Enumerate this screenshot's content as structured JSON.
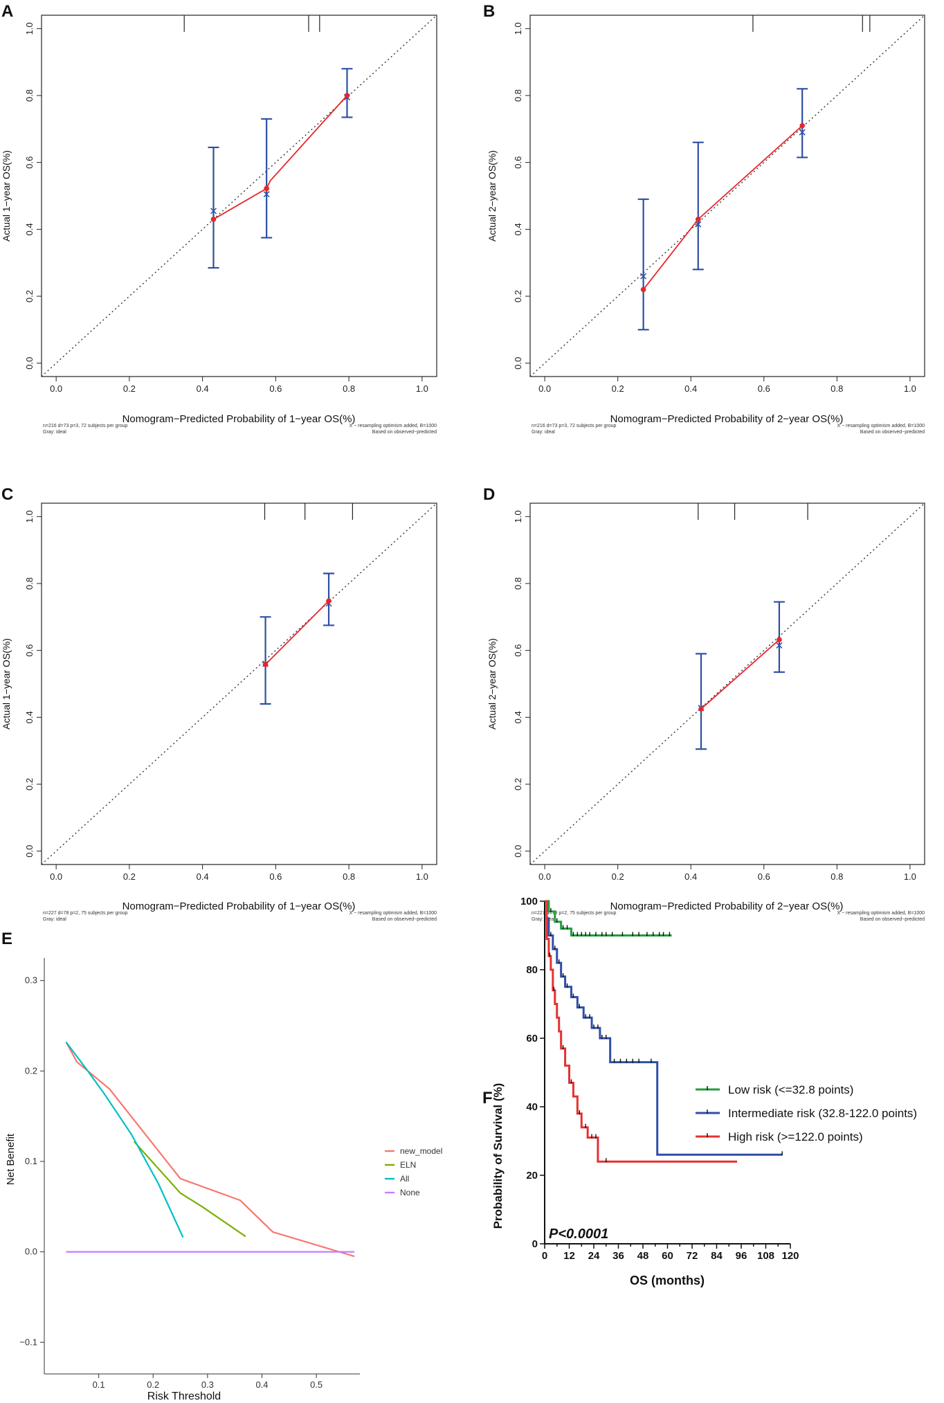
{
  "chart_data": [
    {
      "panel": "A",
      "type": "line",
      "xlabel": "Nomogram−Predicted Probability of 1−year OS(%)",
      "ylabel": "Actual 1−year OS(%)",
      "xlim": [
        -0.04,
        1.04
      ],
      "ylim": [
        -0.04,
        1.04
      ],
      "ticks": [
        "0.0",
        "0.2",
        "0.4",
        "0.6",
        "0.8",
        "1.0"
      ],
      "footer_left": [
        "n=216 d=73 p=3, 72 subjects per group",
        "Gray: ideal"
      ],
      "footer_right": [
        "X − resampling optimism added, B=1000",
        "Based on observed−predicted"
      ],
      "rug_x": [
        0.35,
        0.69,
        0.72
      ],
      "ideal_line": [
        [
          0,
          0
        ],
        [
          1,
          1
        ]
      ],
      "observed": {
        "x": [
          0.43,
          0.575,
          0.585,
          0.795
        ],
        "y": [
          0.43,
          0.522,
          0.545,
          0.8
        ]
      },
      "points": [
        {
          "x": 0.43,
          "observed": 0.43,
          "corrected": 0.455,
          "lower": 0.285,
          "upper": 0.645
        },
        {
          "x": 0.575,
          "observed": 0.522,
          "corrected": 0.505,
          "lower": 0.375,
          "upper": 0.73
        },
        {
          "x": 0.795,
          "observed": 0.8,
          "corrected": 0.795,
          "lower": 0.735,
          "upper": 0.88
        }
      ]
    },
    {
      "panel": "B",
      "type": "line",
      "xlabel": "Nomogram−Predicted Probability of 2−year OS(%)",
      "ylabel": "Actual 2−year OS(%)",
      "xlim": [
        -0.04,
        1.04
      ],
      "ylim": [
        -0.04,
        1.04
      ],
      "ticks": [
        "0.0",
        "0.2",
        "0.4",
        "0.6",
        "0.8",
        "1.0"
      ],
      "footer_left": [
        "n=216 d=73 p=3, 72 subjects per group",
        "Gray: ideal"
      ],
      "footer_right": [
        "X − resampling optimism added, B=1000",
        "Based on observed−predicted"
      ],
      "rug_x": [
        0.57,
        0.87,
        0.89
      ],
      "ideal_line": [
        [
          0,
          0
        ],
        [
          1,
          1
        ]
      ],
      "observed": {
        "x": [
          0.27,
          0.42,
          0.705
        ],
        "y": [
          0.22,
          0.43,
          0.71
        ]
      },
      "points": [
        {
          "x": 0.27,
          "observed": 0.22,
          "corrected": 0.26,
          "lower": 0.1,
          "upper": 0.49
        },
        {
          "x": 0.42,
          "observed": 0.43,
          "corrected": 0.415,
          "lower": 0.28,
          "upper": 0.66
        },
        {
          "x": 0.705,
          "observed": 0.71,
          "corrected": 0.69,
          "lower": 0.615,
          "upper": 0.82
        }
      ]
    },
    {
      "panel": "C",
      "type": "line",
      "xlabel": "Nomogram−Predicted Probability of 1−year OS(%)",
      "ylabel": "Actual 1−year OS(%)",
      "xlim": [
        -0.04,
        1.04
      ],
      "ylim": [
        -0.04,
        1.04
      ],
      "ticks": [
        "0.0",
        "0.2",
        "0.4",
        "0.6",
        "0.8",
        "1.0"
      ],
      "footer_left": [
        "n=227 d=78 p=2, 75 subjects per group",
        "Gray: ideal"
      ],
      "footer_right": [
        "X − resampling optimism added, B=1000",
        "Based on observed−predicted"
      ],
      "rug_x": [
        0.57,
        0.68,
        0.81
      ],
      "ideal_line": [
        [
          0,
          0
        ],
        [
          1,
          1
        ]
      ],
      "observed": {
        "x": [
          0.572,
          0.745
        ],
        "y": [
          0.558,
          0.748
        ]
      },
      "points": [
        {
          "x": 0.572,
          "observed": 0.558,
          "corrected": 0.56,
          "lower": 0.44,
          "upper": 0.7
        },
        {
          "x": 0.745,
          "observed": 0.748,
          "corrected": 0.74,
          "lower": 0.675,
          "upper": 0.83
        }
      ]
    },
    {
      "panel": "D",
      "type": "line",
      "xlabel": "Nomogram−Predicted Probability of 2−year OS(%)",
      "ylabel": "Actual 2−year OS(%)",
      "xlim": [
        -0.04,
        1.04
      ],
      "ylim": [
        -0.04,
        1.04
      ],
      "ticks": [
        "0.0",
        "0.2",
        "0.4",
        "0.6",
        "0.8",
        "1.0"
      ],
      "footer_left": [
        "n=227 d=78 p=2, 75 subjects per group",
        "Gray: ideal"
      ],
      "footer_right": [
        "X − resampling optimism added, B=1000",
        "Based on observed−predicted"
      ],
      "rug_x": [
        0.42,
        0.52,
        0.72
      ],
      "ideal_line": [
        [
          0,
          0
        ],
        [
          1,
          1
        ]
      ],
      "observed": {
        "x": [
          0.428,
          0.642
        ],
        "y": [
          0.425,
          0.632
        ]
      },
      "points": [
        {
          "x": 0.428,
          "observed": 0.425,
          "corrected": 0.428,
          "lower": 0.305,
          "upper": 0.59
        },
        {
          "x": 0.642,
          "observed": 0.632,
          "corrected": 0.615,
          "lower": 0.535,
          "upper": 0.745
        }
      ]
    },
    {
      "panel": "E",
      "type": "line",
      "xlabel": "Risk Threshold",
      "ylabel": "Net Benefit",
      "xlim": [
        0.0,
        0.58
      ],
      "ylim": [
        -0.135,
        0.325
      ],
      "xticks": [
        0.1,
        0.2,
        0.3,
        0.4,
        0.5
      ],
      "xtick_labels": [
        "0.1",
        "0.2",
        "0.3",
        "0.4",
        "0.5"
      ],
      "yticks": [
        -0.1,
        0.0,
        0.1,
        0.2,
        0.3
      ],
      "ytick_labels": [
        "−0.1",
        "0.0",
        "0.1",
        "0.2",
        "0.3"
      ],
      "series": [
        {
          "name": "new_model",
          "color": "#f8766d",
          "x": [
            0.04,
            0.06,
            0.12,
            0.25,
            0.36,
            0.42,
            0.57
          ],
          "y": [
            0.232,
            0.21,
            0.18,
            0.081,
            0.057,
            0.022,
            -0.005
          ]
        },
        {
          "name": "ELN",
          "color": "#7cae00",
          "x": [
            0.165,
            0.25,
            0.29,
            0.37
          ],
          "y": [
            0.122,
            0.065,
            0.05,
            0.017
          ]
        },
        {
          "name": "All",
          "color": "#00bfc4",
          "x": [
            0.04,
            0.08,
            0.11,
            0.16,
            0.21,
            0.255
          ],
          "y": [
            0.232,
            0.2,
            0.175,
            0.13,
            0.075,
            0.016
          ]
        },
        {
          "name": "None",
          "color": "#c77cff",
          "x": [
            0.04,
            0.57
          ],
          "y": [
            0.0,
            0.0
          ]
        }
      ]
    },
    {
      "panel": "F",
      "type": "line",
      "xlabel": "OS (months)",
      "ylabel": "Probability of Survival (%)",
      "xlim": [
        0,
        120
      ],
      "ylim": [
        0,
        100
      ],
      "xticks": [
        0,
        6,
        12,
        18,
        24,
        30,
        36,
        42,
        48,
        54,
        60,
        66,
        72,
        78,
        84,
        90,
        96,
        102,
        108,
        114,
        120
      ],
      "xtick_labels": [
        "0",
        "12",
        "24",
        "36",
        "48",
        "60",
        "72",
        "84",
        "96",
        "108",
        "120"
      ],
      "yticks": [
        0,
        20,
        40,
        60,
        80,
        100
      ],
      "annotation": "P<0.0001",
      "series": [
        {
          "name": "Low risk (<=32.8 points)",
          "color": "#1f9e3a",
          "x": [
            0,
            2,
            2,
            5,
            5,
            8,
            8,
            13,
            13,
            62
          ],
          "y": [
            100,
            100,
            97,
            97,
            94,
            94,
            92,
            92,
            90,
            90
          ],
          "censor": [
            3,
            6,
            9,
            11,
            14,
            16,
            18,
            20,
            22,
            25,
            28,
            30,
            33,
            38,
            43,
            46,
            50,
            53,
            56,
            58,
            61
          ]
        },
        {
          "name": "Intermediate risk (32.8-122.0 points)",
          "color": "#2f4fa6",
          "x": [
            0,
            1,
            1,
            2,
            2,
            4,
            4,
            6,
            6,
            8,
            8,
            10,
            10,
            13,
            13,
            16,
            16,
            19,
            19,
            23,
            23,
            27,
            27,
            32,
            32,
            55,
            55,
            116
          ],
          "y": [
            100,
            100,
            95,
            95,
            90,
            90,
            86,
            86,
            82,
            82,
            78,
            78,
            75,
            75,
            72,
            72,
            69,
            69,
            66,
            66,
            63,
            63,
            60,
            60,
            53,
            53,
            26,
            26
          ],
          "censor": [
            3,
            5,
            7,
            9,
            11,
            14,
            17,
            20,
            22,
            24,
            26,
            28,
            30,
            34,
            37,
            40,
            43,
            46,
            52,
            116
          ]
        },
        {
          "name": "High risk (>=122.0 points)",
          "color": "#e53030",
          "x": [
            0,
            1,
            1,
            2,
            2,
            3,
            3,
            4,
            4,
            5,
            5,
            6,
            6,
            7,
            7,
            8,
            8,
            10,
            10,
            12,
            12,
            14,
            14,
            16,
            16,
            18,
            18,
            21,
            21,
            26,
            26,
            94
          ],
          "y": [
            100,
            100,
            89,
            89,
            84,
            84,
            80,
            80,
            74,
            74,
            70,
            70,
            66,
            66,
            62,
            62,
            57,
            57,
            52,
            52,
            47,
            47,
            43,
            43,
            38,
            38,
            34,
            34,
            31,
            31,
            24,
            24
          ],
          "censor": [
            2.5,
            4.5,
            9,
            13,
            17,
            20,
            23,
            25,
            30
          ]
        }
      ]
    }
  ]
}
